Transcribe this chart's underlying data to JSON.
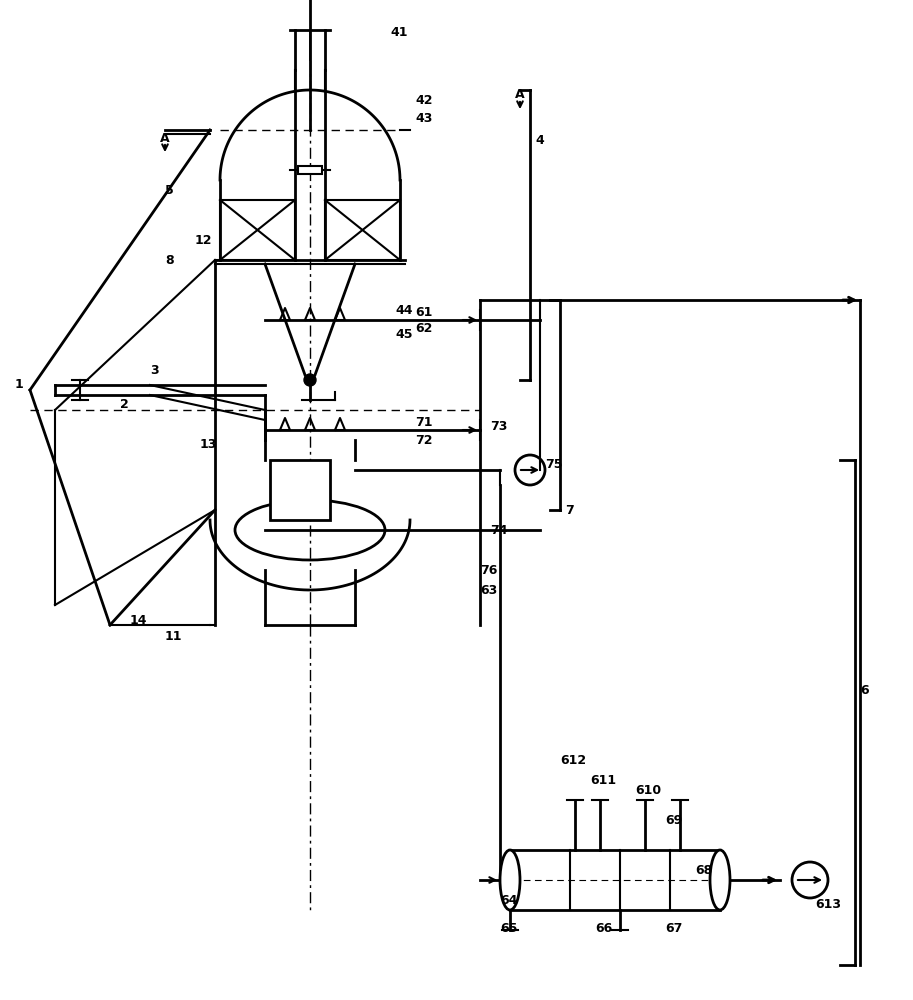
{
  "bg_color": "#ffffff",
  "line_color": "#000000",
  "fig_width": 9.13,
  "fig_height": 10.0,
  "dpi": 100
}
